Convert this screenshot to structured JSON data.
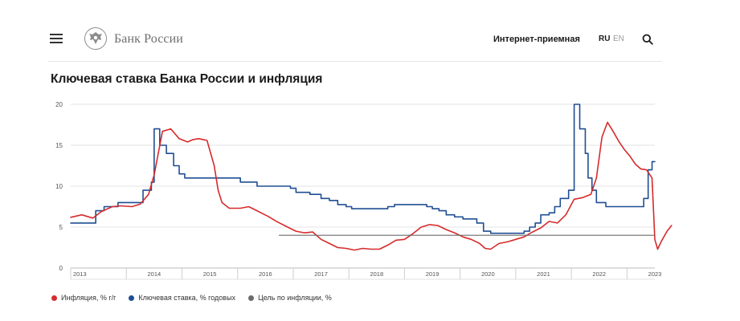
{
  "header": {
    "brand": "Банк России",
    "reception_label": "Интернет-приемная",
    "lang_ru": "RU",
    "lang_en": "EN"
  },
  "page_title": "Ключевая ставка Банка России и инфляция",
  "legend": [
    {
      "label": "Инфляция, % г/г",
      "color": "#d62b2b"
    },
    {
      "label": "Ключевая ставка, % годовых",
      "color": "#1f4e93"
    },
    {
      "label": "Цель по инфляции, %",
      "color": "#6b6b6b"
    }
  ],
  "chart_data": {
    "type": "line",
    "title": "Ключевая ставка Банка России и инфляция",
    "ylim": [
      0,
      20
    ],
    "xlim": [
      2013.0,
      2023.5
    ],
    "y_ticks": [
      0,
      5,
      10,
      15,
      20
    ],
    "x_tick_labels": [
      {
        "label": "2013",
        "x": 2013.0
      },
      {
        "label": "2014",
        "x": 2014.0
      },
      {
        "label": "2015",
        "x": 2015.0
      },
      {
        "label": "2016",
        "x": 2016.0
      },
      {
        "label": "2017",
        "x": 2017.0
      },
      {
        "label": "2018",
        "x": 2018.0
      },
      {
        "label": "2019",
        "x": 2019.0
      },
      {
        "label": "2020",
        "x": 2020.0
      },
      {
        "label": "2021",
        "x": 2021.0
      },
      {
        "label": "2022",
        "x": 2022.0
      },
      {
        "label": "2023",
        "x": 2023.0
      }
    ],
    "grid": true,
    "series": [
      {
        "name": "Ключевая ставка, % годовых",
        "color": "#1f4e93",
        "step": true,
        "points": [
          [
            2013.0,
            5.5
          ],
          [
            2013.45,
            7.0
          ],
          [
            2013.6,
            7.5
          ],
          [
            2013.85,
            8.0
          ],
          [
            2014.15,
            8.0
          ],
          [
            2014.3,
            9.5
          ],
          [
            2014.45,
            10.5
          ],
          [
            2014.5,
            17.0
          ],
          [
            2014.6,
            15.0
          ],
          [
            2014.72,
            14.0
          ],
          [
            2014.85,
            12.5
          ],
          [
            2014.95,
            11.5
          ],
          [
            2015.05,
            11.0
          ],
          [
            2015.9,
            11.0
          ],
          [
            2016.05,
            10.5
          ],
          [
            2016.35,
            10.0
          ],
          [
            2016.9,
            10.0
          ],
          [
            2016.95,
            9.75
          ],
          [
            2017.05,
            9.25
          ],
          [
            2017.3,
            9.0
          ],
          [
            2017.5,
            8.5
          ],
          [
            2017.65,
            8.25
          ],
          [
            2017.8,
            7.75
          ],
          [
            2017.95,
            7.5
          ],
          [
            2018.05,
            7.25
          ],
          [
            2018.7,
            7.5
          ],
          [
            2018.82,
            7.75
          ],
          [
            2019.4,
            7.5
          ],
          [
            2019.5,
            7.25
          ],
          [
            2019.62,
            7.0
          ],
          [
            2019.75,
            6.5
          ],
          [
            2019.9,
            6.25
          ],
          [
            2020.05,
            6.0
          ],
          [
            2020.3,
            5.5
          ],
          [
            2020.42,
            4.5
          ],
          [
            2020.55,
            4.25
          ],
          [
            2020.9,
            4.25
          ],
          [
            2021.15,
            4.5
          ],
          [
            2021.25,
            5.0
          ],
          [
            2021.35,
            5.5
          ],
          [
            2021.45,
            6.5
          ],
          [
            2021.6,
            6.75
          ],
          [
            2021.7,
            7.5
          ],
          [
            2021.8,
            8.5
          ],
          [
            2021.95,
            9.5
          ],
          [
            2022.05,
            20.0
          ],
          [
            2022.15,
            17.0
          ],
          [
            2022.25,
            14.0
          ],
          [
            2022.3,
            11.0
          ],
          [
            2022.37,
            9.5
          ],
          [
            2022.45,
            8.0
          ],
          [
            2022.62,
            7.5
          ],
          [
            2023.2,
            7.5
          ],
          [
            2023.3,
            8.5
          ],
          [
            2023.38,
            12.0
          ],
          [
            2023.45,
            13.0
          ],
          [
            2023.5,
            13.0
          ]
        ]
      },
      {
        "name": "Инфляция, % г/г",
        "color": "#d62b2b",
        "step": false,
        "points": [
          [
            2013.0,
            6.2
          ],
          [
            2013.2,
            6.5
          ],
          [
            2013.4,
            6.1
          ],
          [
            2013.55,
            6.9
          ],
          [
            2013.75,
            7.5
          ],
          [
            2013.9,
            7.6
          ],
          [
            2014.1,
            7.5
          ],
          [
            2014.25,
            7.8
          ],
          [
            2014.4,
            9.0
          ],
          [
            2014.5,
            11.4
          ],
          [
            2014.65,
            16.7
          ],
          [
            2014.8,
            17.0
          ],
          [
            2014.95,
            15.8
          ],
          [
            2015.1,
            15.4
          ],
          [
            2015.2,
            15.7
          ],
          [
            2015.3,
            15.8
          ],
          [
            2015.45,
            15.6
          ],
          [
            2015.58,
            12.5
          ],
          [
            2015.65,
            9.5
          ],
          [
            2015.72,
            8.0
          ],
          [
            2015.85,
            7.3
          ],
          [
            2016.05,
            7.3
          ],
          [
            2016.2,
            7.5
          ],
          [
            2016.35,
            7.0
          ],
          [
            2016.55,
            6.3
          ],
          [
            2016.7,
            5.7
          ],
          [
            2016.9,
            5.0
          ],
          [
            2017.05,
            4.5
          ],
          [
            2017.2,
            4.3
          ],
          [
            2017.35,
            4.4
          ],
          [
            2017.5,
            3.5
          ],
          [
            2017.65,
            3.0
          ],
          [
            2017.8,
            2.5
          ],
          [
            2017.95,
            2.4
          ],
          [
            2018.1,
            2.2
          ],
          [
            2018.25,
            2.4
          ],
          [
            2018.4,
            2.3
          ],
          [
            2018.55,
            2.3
          ],
          [
            2018.7,
            2.8
          ],
          [
            2018.85,
            3.4
          ],
          [
            2019.0,
            3.5
          ],
          [
            2019.15,
            4.2
          ],
          [
            2019.3,
            5.0
          ],
          [
            2019.45,
            5.3
          ],
          [
            2019.6,
            5.2
          ],
          [
            2019.75,
            4.7
          ],
          [
            2019.9,
            4.3
          ],
          [
            2020.05,
            3.8
          ],
          [
            2020.2,
            3.5
          ],
          [
            2020.35,
            3.0
          ],
          [
            2020.45,
            2.4
          ],
          [
            2020.55,
            2.3
          ],
          [
            2020.7,
            3.0
          ],
          [
            2020.85,
            3.2
          ],
          [
            2021.0,
            3.5
          ],
          [
            2021.15,
            3.8
          ],
          [
            2021.3,
            4.4
          ],
          [
            2021.45,
            4.9
          ],
          [
            2021.6,
            5.7
          ],
          [
            2021.75,
            5.5
          ],
          [
            2021.9,
            6.5
          ],
          [
            2022.05,
            8.4
          ],
          [
            2022.2,
            8.6
          ],
          [
            2022.35,
            9.0
          ],
          [
            2022.45,
            11.0
          ],
          [
            2022.55,
            16.0
          ],
          [
            2022.65,
            17.8
          ],
          [
            2022.75,
            16.7
          ],
          [
            2022.85,
            15.5
          ],
          [
            2022.95,
            14.5
          ],
          [
            2023.05,
            13.7
          ],
          [
            2023.15,
            12.7
          ],
          [
            2023.25,
            12.1
          ],
          [
            2023.35,
            12.0
          ],
          [
            2023.45,
            11.0
          ],
          [
            2023.5,
            3.5
          ],
          [
            2023.55,
            2.3
          ],
          [
            2023.62,
            3.3
          ],
          [
            2023.72,
            4.5
          ],
          [
            2023.8,
            5.2
          ]
        ]
      },
      {
        "name": "Цель по инфляции, %",
        "color": "#6b6b6b",
        "step": false,
        "points": [
          [
            2016.75,
            4.0
          ],
          [
            2023.5,
            4.0
          ]
        ]
      }
    ]
  }
}
